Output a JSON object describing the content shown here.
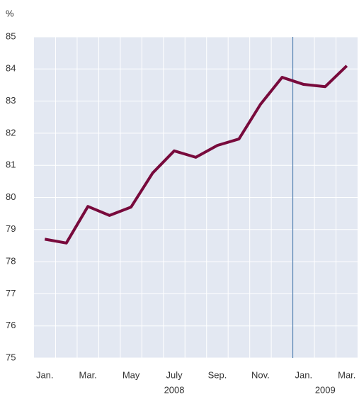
{
  "chart_data": {
    "type": "line",
    "y_label": "%",
    "categories": [
      "Jan.",
      null,
      "Mar.",
      null,
      "May",
      null,
      "July",
      null,
      "Sep.",
      null,
      "Nov.",
      null,
      "Jan.",
      null,
      "Mar."
    ],
    "year_labels": [
      "2008",
      "2009"
    ],
    "series": [
      {
        "name": null,
        "color": "#780a3c",
        "values": [
          78.7,
          78.58,
          79.72,
          79.44,
          79.7,
          80.76,
          81.45,
          81.25,
          81.62,
          81.82,
          82.9,
          83.74,
          83.52,
          83.45,
          84.1
        ]
      }
    ],
    "ylim": [
      75,
      85
    ],
    "yticks": [
      75,
      76,
      77,
      78,
      79,
      80,
      81,
      82,
      83,
      84,
      85
    ],
    "grid": true
  }
}
